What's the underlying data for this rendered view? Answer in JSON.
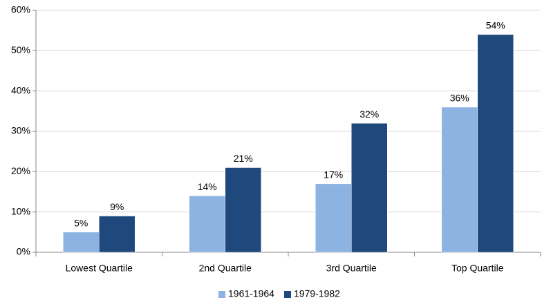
{
  "chart_data": {
    "type": "bar",
    "categories": [
      "Lowest Quartile",
      "2nd Quartile",
      "3rd Quartile",
      "Top Quartile"
    ],
    "series": [
      {
        "name": "1961-1964",
        "color": "#8db3e2",
        "values": [
          5,
          14,
          17,
          36
        ],
        "value_labels": [
          "5%",
          "14%",
          "17%",
          "36%"
        ]
      },
      {
        "name": "1979-1982",
        "color": "#1f497d",
        "values": [
          9,
          21,
          32,
          54
        ],
        "value_labels": [
          "9%",
          "21%",
          "32%",
          "54%"
        ]
      }
    ],
    "ylim": [
      0,
      60
    ],
    "yticks": [
      {
        "value": 0,
        "label": "0%"
      },
      {
        "value": 10,
        "label": "10%"
      },
      {
        "value": 20,
        "label": "20%"
      },
      {
        "value": 30,
        "label": "30%"
      },
      {
        "value": 40,
        "label": "40%"
      },
      {
        "value": 50,
        "label": "50%"
      },
      {
        "value": 60,
        "label": "60%"
      }
    ],
    "grid": true,
    "legend": "bottom"
  }
}
